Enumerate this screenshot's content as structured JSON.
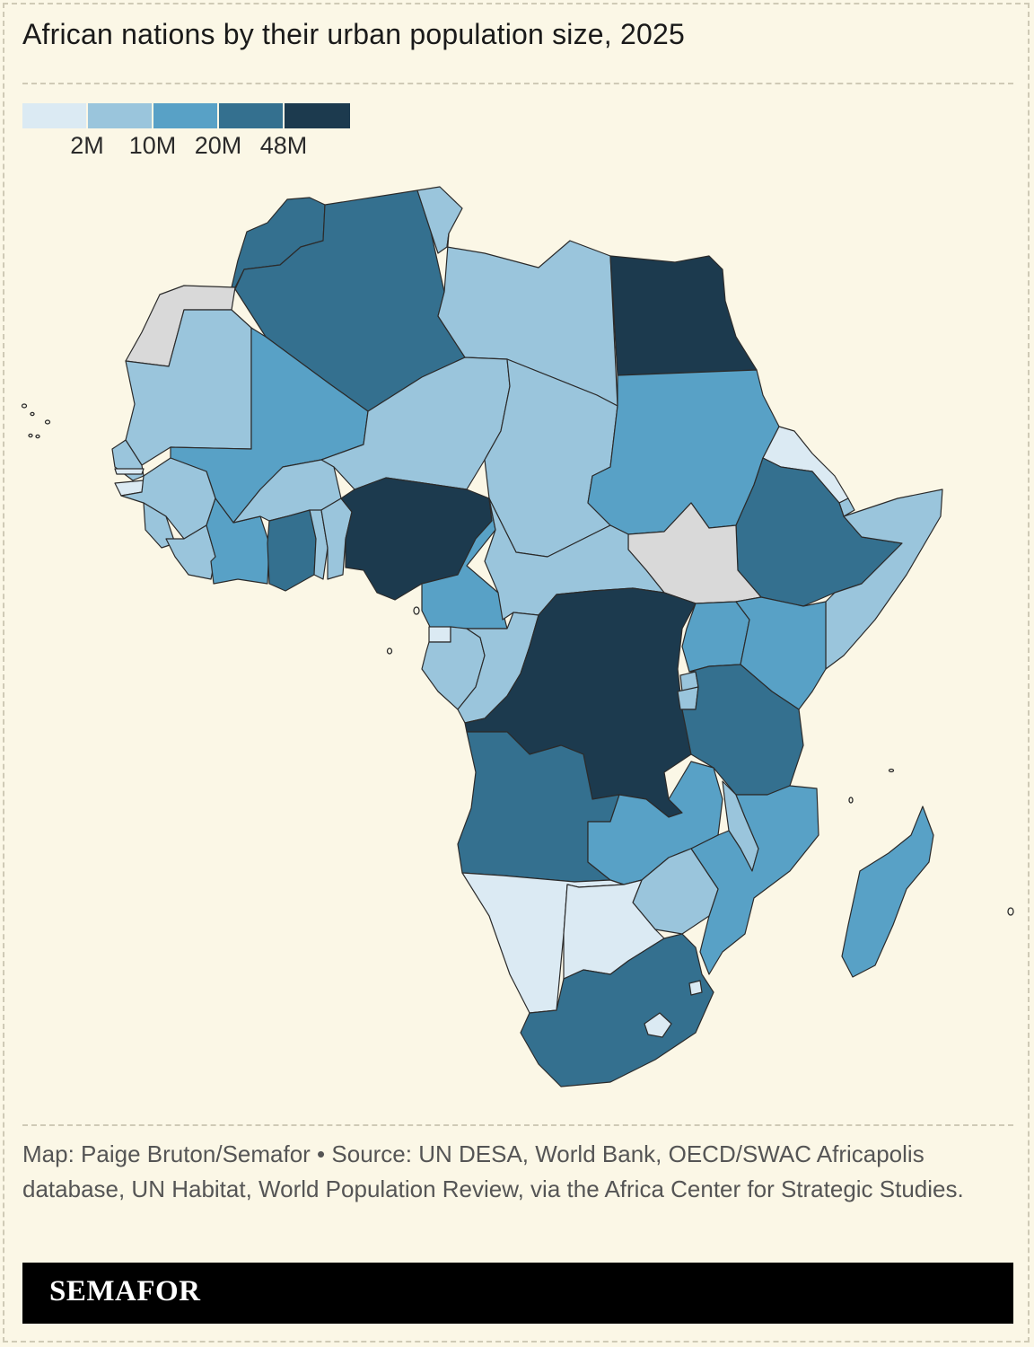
{
  "title": "African nations by their urban population size, 2025",
  "legend": {
    "ticks": [
      "2M",
      "10M",
      "20M",
      "48M"
    ],
    "colors": [
      "#dbeaf3",
      "#9ac5dc",
      "#58a1c6",
      "#34708f",
      "#1c3a4e"
    ],
    "no_data_color": "#d9d9d9"
  },
  "credits": "Map: Paige Bruton/Semafor • Source: UN DESA, World Bank, OECD/SWAC Africapolis database, UN Habitat, World Population Review, via the Africa Center for Strategic Studies.",
  "brand": "SEMAFOR",
  "map_data": {
    "type": "choropleth",
    "bins": [
      "<2M",
      "2M–10M",
      "10M–20M",
      "20M–48M",
      ">48M",
      "no data"
    ],
    "countries": [
      {
        "name": "Morocco",
        "bin": 3
      },
      {
        "name": "Western Sahara",
        "bin": 5
      },
      {
        "name": "Algeria",
        "bin": 3
      },
      {
        "name": "Tunisia",
        "bin": 1
      },
      {
        "name": "Libya",
        "bin": 1
      },
      {
        "name": "Egypt",
        "bin": 4
      },
      {
        "name": "Mauritania",
        "bin": 1
      },
      {
        "name": "Mali",
        "bin": 2
      },
      {
        "name": "Niger",
        "bin": 1
      },
      {
        "name": "Chad",
        "bin": 1
      },
      {
        "name": "Sudan",
        "bin": 2
      },
      {
        "name": "Eritrea",
        "bin": 0
      },
      {
        "name": "Djibouti",
        "bin": 1
      },
      {
        "name": "Ethiopia",
        "bin": 3
      },
      {
        "name": "Somalia",
        "bin": 1
      },
      {
        "name": "South Sudan",
        "bin": 5
      },
      {
        "name": "Senegal",
        "bin": 1
      },
      {
        "name": "Gambia",
        "bin": 0
      },
      {
        "name": "Guinea-Bissau",
        "bin": 0
      },
      {
        "name": "Guinea",
        "bin": 1
      },
      {
        "name": "Sierra Leone",
        "bin": 1
      },
      {
        "name": "Liberia",
        "bin": 1
      },
      {
        "name": "Ivory Coast",
        "bin": 2
      },
      {
        "name": "Burkina Faso",
        "bin": 1
      },
      {
        "name": "Ghana",
        "bin": 3
      },
      {
        "name": "Togo",
        "bin": 1
      },
      {
        "name": "Benin",
        "bin": 1
      },
      {
        "name": "Nigeria",
        "bin": 4
      },
      {
        "name": "Cameroon",
        "bin": 2
      },
      {
        "name": "Central African Republic",
        "bin": 1
      },
      {
        "name": "Equatorial Guinea",
        "bin": 0
      },
      {
        "name": "Gabon",
        "bin": 1
      },
      {
        "name": "Republic of the Congo",
        "bin": 1
      },
      {
        "name": "DR Congo",
        "bin": 4
      },
      {
        "name": "Uganda",
        "bin": 2
      },
      {
        "name": "Kenya",
        "bin": 2
      },
      {
        "name": "Rwanda",
        "bin": 1
      },
      {
        "name": "Burundi",
        "bin": 1
      },
      {
        "name": "Tanzania",
        "bin": 3
      },
      {
        "name": "Angola",
        "bin": 3
      },
      {
        "name": "Zambia",
        "bin": 2
      },
      {
        "name": "Malawi",
        "bin": 1
      },
      {
        "name": "Mozambique",
        "bin": 2
      },
      {
        "name": "Zimbabwe",
        "bin": 1
      },
      {
        "name": "Namibia",
        "bin": 0
      },
      {
        "name": "Botswana",
        "bin": 0
      },
      {
        "name": "South Africa",
        "bin": 3
      },
      {
        "name": "Lesotho",
        "bin": 0
      },
      {
        "name": "Eswatini",
        "bin": 0
      },
      {
        "name": "Madagascar",
        "bin": 2
      }
    ]
  }
}
